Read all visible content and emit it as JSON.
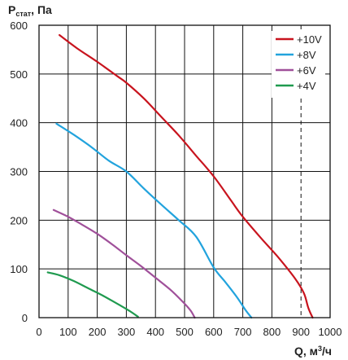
{
  "chart_data": {
    "type": "line",
    "ylabel": {
      "main": "P",
      "sub": "стат",
      "suffix": ", Па"
    },
    "xlabel": {
      "main": "Q, м",
      "sup": "3",
      "suffix": "/ч"
    },
    "xlim": [
      0,
      1000
    ],
    "ylim": [
      0,
      600
    ],
    "x_ticks": [
      "0",
      "100",
      "200",
      "300",
      "400",
      "500",
      "600",
      "700",
      "800",
      "900",
      "1000"
    ],
    "y_ticks": [
      "0",
      "100",
      "200",
      "300",
      "400",
      "500",
      "600"
    ],
    "x_tick_values": [
      0,
      100,
      200,
      300,
      400,
      500,
      600,
      700,
      800,
      900,
      1000
    ],
    "y_tick_values": [
      0,
      100,
      200,
      300,
      400,
      500,
      600
    ],
    "grid": true,
    "legend_position": "top-right",
    "series": [
      {
        "name": "+10V",
        "color": "#c8141e",
        "points": [
          [
            70,
            580
          ],
          [
            130,
            553
          ],
          [
            200,
            525
          ],
          [
            270,
            495
          ],
          [
            300,
            482
          ],
          [
            360,
            450
          ],
          [
            420,
            412
          ],
          [
            480,
            374
          ],
          [
            540,
            332
          ],
          [
            600,
            290
          ],
          [
            660,
            240
          ],
          [
            700,
            207
          ],
          [
            760,
            165
          ],
          [
            820,
            125
          ],
          [
            880,
            80
          ],
          [
            910,
            50
          ],
          [
            925,
            20
          ],
          [
            940,
            0
          ]
        ]
      },
      {
        "name": "+8V",
        "color": "#22a3dd",
        "points": [
          [
            60,
            398
          ],
          [
            120,
            375
          ],
          [
            180,
            350
          ],
          [
            240,
            322
          ],
          [
            300,
            300
          ],
          [
            360,
            265
          ],
          [
            420,
            232
          ],
          [
            480,
            200
          ],
          [
            540,
            166
          ],
          [
            600,
            103
          ],
          [
            640,
            73
          ],
          [
            680,
            42
          ],
          [
            710,
            15
          ],
          [
            730,
            0
          ]
        ]
      },
      {
        "name": "+6V",
        "color": "#a0509a",
        "points": [
          [
            50,
            221
          ],
          [
            100,
            207
          ],
          [
            150,
            190
          ],
          [
            200,
            172
          ],
          [
            250,
            151
          ],
          [
            300,
            128
          ],
          [
            350,
            106
          ],
          [
            400,
            82
          ],
          [
            450,
            58
          ],
          [
            490,
            35
          ],
          [
            520,
            15
          ],
          [
            535,
            0
          ]
        ]
      },
      {
        "name": "+4V",
        "color": "#1f9a4f",
        "points": [
          [
            30,
            93
          ],
          [
            70,
            87
          ],
          [
            120,
            75
          ],
          [
            170,
            60
          ],
          [
            220,
            45
          ],
          [
            270,
            28
          ],
          [
            310,
            14
          ],
          [
            340,
            2
          ]
        ]
      }
    ]
  }
}
